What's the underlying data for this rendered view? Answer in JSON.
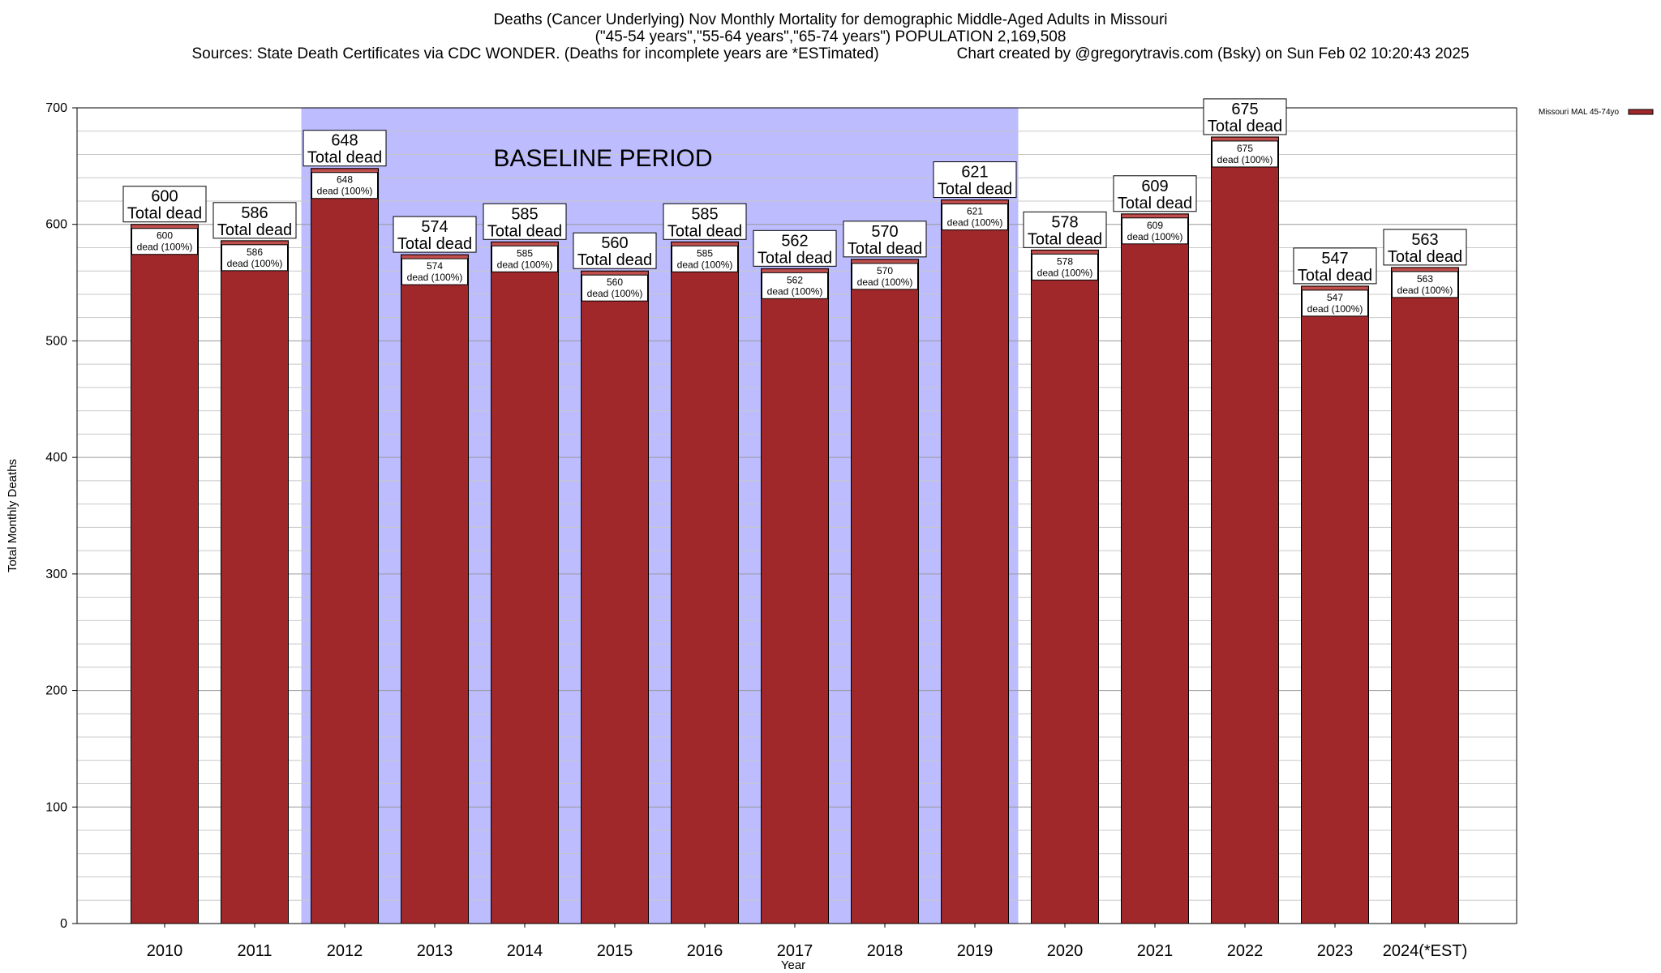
{
  "header": {
    "title_line1": "Deaths (Cancer Underlying) Nov Monthly Mortality for demographic Middle-Aged Adults in Missouri",
    "title_line2": "(\"45-54 years\",\"55-64 years\",\"65-74 years\") POPULATION 2,169,508",
    "sources": "Sources: State Death Certificates via CDC WONDER. (Deaths for incomplete years are *ESTimated)",
    "credit": "Chart created by @gregorytravis.com (Bsky) on Sun Feb 02 10:20:43 2025"
  },
  "chart_data": {
    "type": "bar",
    "categories": [
      "2010",
      "2011",
      "2012",
      "2013",
      "2014",
      "2015",
      "2016",
      "2017",
      "2018",
      "2019",
      "2020",
      "2021",
      "2022",
      "2023",
      "2024(*EST)"
    ],
    "series": [
      {
        "name": "Missouri MAL 45-74yo",
        "values": [
          600,
          586,
          648,
          574,
          585,
          560,
          585,
          562,
          570,
          621,
          578,
          609,
          675,
          547,
          563
        ]
      }
    ],
    "xlabel": "Year",
    "ylabel": "Total Monthly Deaths",
    "ylim": [
      0,
      700
    ],
    "yticks": [
      0,
      100,
      200,
      300,
      400,
      500,
      600,
      700
    ],
    "grid": true,
    "legend_position": "top-right",
    "bar_label_upper": "Total dead",
    "bar_label_lower_suffix": "dead (100%)",
    "shaded_region": {
      "label": "BASELINE PERIOD",
      "from_category": "2012",
      "to_category": "2019",
      "color": "#bcbcff"
    },
    "colors": {
      "bar": "#a0282a",
      "bar_cap": "#c0504d"
    }
  }
}
